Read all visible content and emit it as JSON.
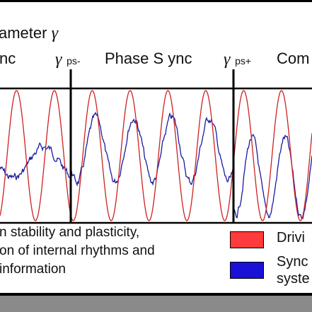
{
  "labels": {
    "parameter": "ameter",
    "gamma_symbol": "γ",
    "region_left": "nc",
    "region_mid": "Phase S ync",
    "region_right": "Com",
    "marker_minus_sub": "ps-",
    "marker_plus_sub": "ps+"
  },
  "caption_lines": [
    "n stability and plasticity,",
    "on of internal rhythms and",
    "information"
  ],
  "legend": [
    {
      "label_line1": "Drivi",
      "label_line2": "",
      "color": "#ff3b3b"
    },
    {
      "label_line1": "Sync",
      "label_line2": "syste",
      "color": "#1a10d6"
    }
  ],
  "colors": {
    "driving": "#cc2222",
    "sync": "#1a1aa0",
    "bottom_bar": "#8a8a8a"
  }
}
